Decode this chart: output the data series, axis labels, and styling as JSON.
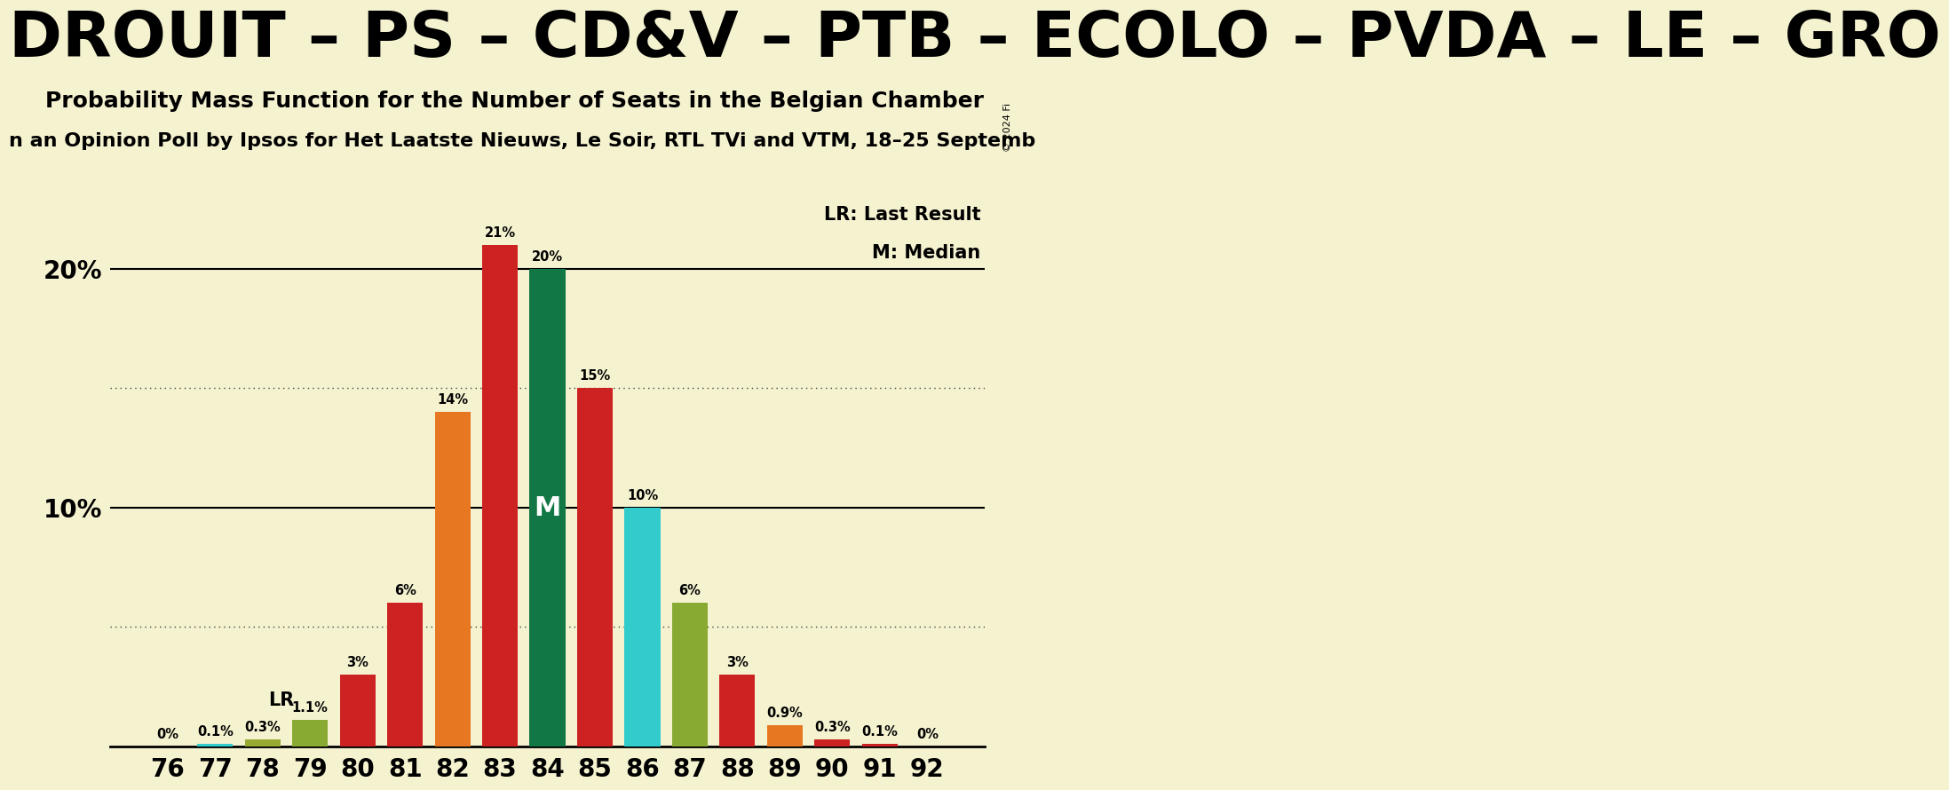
{
  "seats": [
    76,
    77,
    78,
    79,
    80,
    81,
    82,
    83,
    84,
    85,
    86,
    87,
    88,
    89,
    90,
    91,
    92
  ],
  "values": [
    0.0,
    0.1,
    0.3,
    1.1,
    3.0,
    6.0,
    14.0,
    21.0,
    20.0,
    15.0,
    10.0,
    6.0,
    3.0,
    0.9,
    0.3,
    0.1,
    0.0
  ],
  "colors": [
    "#cc2222",
    "#33cccc",
    "#99aa33",
    "#88aa33",
    "#cc2222",
    "#cc2222",
    "#e87722",
    "#cc2222",
    "#117744",
    "#cc2222",
    "#33cccc",
    "#88aa33",
    "#cc2222",
    "#e87722",
    "#cc2222",
    "#cc2222",
    "#cc2222"
  ],
  "bar_labels": [
    "0%",
    "0.1%",
    "0.3%",
    "1.1%",
    "3%",
    "6%",
    "14%",
    "21%",
    "20%",
    "15%",
    "10%",
    "6%",
    "3%",
    "0.9%",
    "0.3%",
    "0.1%",
    "0%"
  ],
  "lr_seat": 79,
  "median_seat": 84,
  "median_label": "M",
  "lr_label": "LR",
  "title1": "DROUIT – PS – CD&V – PTB – ECOLO – PVDA – LE – GRO",
  "title2": "Probability Mass Function for the Number of Seats in the Belgian Chamber",
  "title3": "n an Opinion Poll by Ipsos for Het Laatste Nieuws, Le Soir, RTL TVi and VTM, 18–25 Septemb",
  "legend_lr": "LR: Last Result",
  "legend_m": "M: Median",
  "copyright": "© 2024 Fi",
  "bg_color": "#f5f2d0",
  "ylim": [
    0,
    23
  ],
  "dotted_lines": [
    5.0,
    15.0
  ],
  "solid_lines": [
    10.0,
    20.0
  ],
  "title1_fontsize": 52,
  "title2_fontsize": 18,
  "title3_fontsize": 16
}
